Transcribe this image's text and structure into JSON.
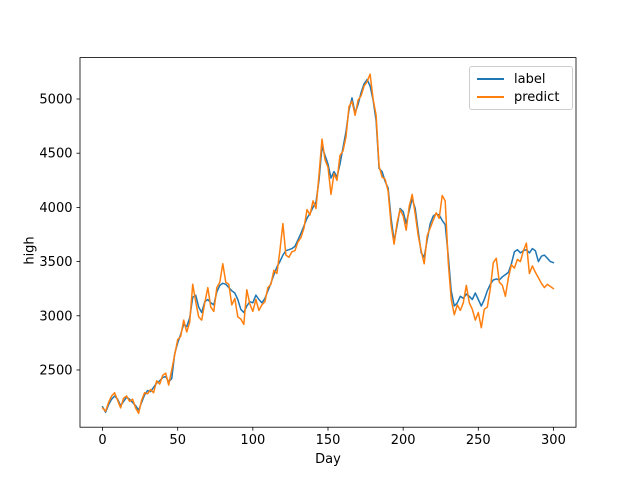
{
  "figure": {
    "background": "#ffffff"
  },
  "chart_data": {
    "type": "line",
    "title": "",
    "xlabel": "Day",
    "ylabel": "high",
    "xlim": [
      -15,
      315
    ],
    "ylim": [
      1972,
      5382
    ],
    "xticks": [
      0,
      50,
      100,
      150,
      200,
      250,
      300
    ],
    "yticks": [
      2500,
      3000,
      3500,
      4000,
      4500,
      5000
    ],
    "grid": false,
    "legend": {
      "position": "upper right"
    },
    "x": [
      0,
      2,
      4,
      6,
      8,
      10,
      12,
      14,
      16,
      18,
      20,
      22,
      24,
      26,
      28,
      30,
      32,
      34,
      36,
      38,
      40,
      42,
      44,
      46,
      48,
      50,
      52,
      54,
      56,
      58,
      60,
      62,
      64,
      66,
      68,
      70,
      72,
      74,
      76,
      78,
      80,
      82,
      84,
      86,
      88,
      90,
      92,
      94,
      96,
      98,
      100,
      102,
      104,
      106,
      108,
      110,
      112,
      114,
      116,
      118,
      120,
      122,
      124,
      126,
      128,
      130,
      132,
      134,
      136,
      138,
      140,
      142,
      144,
      146,
      148,
      150,
      152,
      154,
      156,
      158,
      160,
      162,
      164,
      166,
      168,
      170,
      172,
      174,
      176,
      178,
      180,
      182,
      184,
      186,
      188,
      190,
      192,
      194,
      196,
      198,
      200,
      202,
      204,
      206,
      208,
      210,
      212,
      214,
      216,
      218,
      220,
      222,
      224,
      226,
      228,
      230,
      232,
      234,
      236,
      238,
      240,
      242,
      244,
      246,
      248,
      250,
      252,
      254,
      256,
      258,
      260,
      262,
      264,
      266,
      268,
      270,
      272,
      274,
      276,
      278,
      280,
      282,
      284,
      286,
      288,
      290,
      292,
      294,
      296,
      298,
      300
    ],
    "series": [
      {
        "name": "label",
        "color": "#1f77b4",
        "values": [
          2160,
          2110,
          2180,
          2230,
          2260,
          2230,
          2170,
          2210,
          2250,
          2230,
          2200,
          2170,
          2130,
          2200,
          2270,
          2310,
          2300,
          2340,
          2380,
          2400,
          2430,
          2440,
          2390,
          2420,
          2650,
          2750,
          2830,
          2920,
          2900,
          2980,
          3170,
          3190,
          3080,
          3030,
          3130,
          3150,
          3120,
          3100,
          3220,
          3280,
          3300,
          3290,
          3260,
          3230,
          3210,
          3150,
          3060,
          3030,
          3090,
          3130,
          3120,
          3190,
          3150,
          3120,
          3160,
          3230,
          3300,
          3380,
          3450,
          3500,
          3560,
          3600,
          3610,
          3620,
          3640,
          3700,
          3760,
          3830,
          3900,
          3945,
          4000,
          4050,
          4250,
          4560,
          4480,
          4400,
          4270,
          4330,
          4280,
          4400,
          4550,
          4700,
          4900,
          5010,
          4870,
          4950,
          5060,
          5140,
          5180,
          5120,
          4990,
          4800,
          4360,
          4330,
          4240,
          4180,
          3900,
          3690,
          3830,
          3990,
          3960,
          3850,
          3970,
          4080,
          3990,
          3780,
          3580,
          3540,
          3700,
          3850,
          3920,
          3940,
          3930,
          3880,
          3840,
          3560,
          3230,
          3090,
          3120,
          3180,
          3160,
          3200,
          3180,
          3150,
          3210,
          3150,
          3090,
          3150,
          3230,
          3290,
          3330,
          3340,
          3330,
          3360,
          3380,
          3400,
          3480,
          3590,
          3610,
          3580,
          3600,
          3610,
          3580,
          3620,
          3600,
          3500,
          3550,
          3560,
          3530,
          3500,
          3490
        ]
      },
      {
        "name": "predict",
        "color": "#ff7f0e",
        "values": [
          2150,
          2120,
          2200,
          2260,
          2290,
          2220,
          2150,
          2240,
          2260,
          2210,
          2230,
          2150,
          2100,
          2220,
          2290,
          2280,
          2320,
          2290,
          2400,
          2370,
          2450,
          2470,
          2360,
          2500,
          2640,
          2780,
          2810,
          2960,
          2850,
          2940,
          3290,
          3130,
          2990,
          2960,
          3120,
          3260,
          3080,
          3040,
          3260,
          3310,
          3480,
          3310,
          3290,
          3100,
          3160,
          2990,
          2970,
          2920,
          3240,
          3110,
          3040,
          3150,
          3050,
          3100,
          3130,
          3260,
          3290,
          3420,
          3390,
          3600,
          3850,
          3560,
          3540,
          3590,
          3600,
          3680,
          3720,
          3810,
          3980,
          3930,
          4060,
          3990,
          4300,
          4630,
          4440,
          4370,
          4120,
          4310,
          4250,
          4480,
          4520,
          4650,
          4930,
          4980,
          4850,
          4990,
          5030,
          5120,
          5160,
          5230,
          5000,
          4850,
          4380,
          4280,
          4260,
          4150,
          3840,
          3660,
          3860,
          3980,
          3920,
          3790,
          4010,
          4120,
          3940,
          3740,
          3600,
          3480,
          3740,
          3810,
          3880,
          3950,
          3900,
          4110,
          4060,
          3500,
          3150,
          3010,
          3100,
          3050,
          3120,
          3280,
          3120,
          3060,
          2960,
          3030,
          2890,
          3060,
          3080,
          3250,
          3490,
          3530,
          3310,
          3280,
          3180,
          3350,
          3470,
          3440,
          3520,
          3500,
          3600,
          3670,
          3390,
          3460,
          3400,
          3350,
          3300,
          3260,
          3290,
          3270,
          3250
        ]
      }
    ]
  }
}
